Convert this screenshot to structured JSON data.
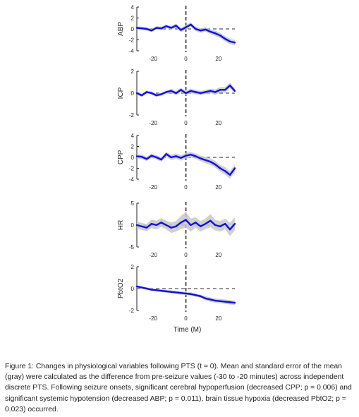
{
  "chart_data": [
    {
      "type": "line",
      "ylabel": "ABP",
      "ylim": [
        -4,
        4
      ],
      "yticks": [
        "4",
        "2",
        "0",
        "-2",
        "-4"
      ],
      "xlim": [
        -30,
        30
      ],
      "xticks": [
        "-20",
        "0",
        "20"
      ],
      "series": [
        {
          "x": [
            -30,
            -27,
            -24,
            -21,
            -18,
            -15,
            -12,
            -9,
            -6,
            -3,
            0,
            3,
            6,
            9,
            12,
            15,
            18,
            21,
            24,
            27,
            30
          ],
          "values": [
            0.2,
            0.1,
            0.0,
            -0.3,
            0.2,
            0.1,
            0.5,
            0.2,
            0.6,
            -0.2,
            0.3,
            0.8,
            0.0,
            -0.3,
            -0.1,
            -0.5,
            -0.8,
            -1.2,
            -1.8,
            -2.3,
            -2.5
          ],
          "sem": [
            0.3,
            0.3,
            0.3,
            0.3,
            0.3,
            0.3,
            0.3,
            0.3,
            0.4,
            0.4,
            0.4,
            0.4,
            0.4,
            0.4,
            0.4,
            0.4,
            0.5,
            0.5,
            0.5,
            0.5,
            0.5
          ]
        }
      ]
    },
    {
      "type": "line",
      "ylabel": "ICP",
      "ylim": [
        -2,
        2
      ],
      "yticks": [
        "2",
        "0",
        "-2"
      ],
      "xlim": [
        -30,
        30
      ],
      "xticks": [
        "-20",
        "0",
        "20"
      ],
      "series": [
        {
          "x": [
            -30,
            -27,
            -24,
            -21,
            -18,
            -15,
            -12,
            -9,
            -6,
            -3,
            0,
            3,
            6,
            9,
            12,
            15,
            18,
            21,
            24,
            27,
            30
          ],
          "values": [
            0.0,
            -0.2,
            0.1,
            0.0,
            -0.2,
            -0.1,
            0.1,
            0.2,
            0.0,
            0.3,
            0.0,
            0.2,
            0.1,
            0.0,
            0.1,
            0.2,
            0.1,
            0.3,
            0.3,
            0.7,
            0.2
          ],
          "sem": [
            0.15,
            0.15,
            0.15,
            0.15,
            0.15,
            0.15,
            0.15,
            0.2,
            0.2,
            0.2,
            0.2,
            0.2,
            0.2,
            0.2,
            0.2,
            0.2,
            0.25,
            0.25,
            0.25,
            0.25,
            0.25
          ]
        }
      ]
    },
    {
      "type": "line",
      "ylabel": "CPP",
      "ylim": [
        -4,
        4
      ],
      "yticks": [
        "4",
        "2",
        "0",
        "-2",
        "-4"
      ],
      "xlim": [
        -30,
        30
      ],
      "xticks": [
        "-20",
        "0",
        "20"
      ],
      "series": [
        {
          "x": [
            -30,
            -27,
            -24,
            -21,
            -18,
            -15,
            -12,
            -9,
            -6,
            -3,
            0,
            3,
            6,
            9,
            12,
            15,
            18,
            21,
            24,
            27,
            30
          ],
          "values": [
            0.2,
            0.1,
            -0.3,
            0.3,
            0.0,
            -0.4,
            0.6,
            0.0,
            0.2,
            -0.1,
            0.3,
            0.5,
            0.2,
            -0.2,
            -0.5,
            -0.8,
            -1.3,
            -2.0,
            -2.5,
            -3.2,
            -2.0
          ],
          "sem": [
            0.4,
            0.4,
            0.4,
            0.4,
            0.4,
            0.4,
            0.4,
            0.5,
            0.5,
            0.5,
            0.5,
            0.5,
            0.5,
            0.5,
            0.6,
            0.6,
            0.6,
            0.6,
            0.7,
            0.7,
            0.7
          ]
        }
      ]
    },
    {
      "type": "line",
      "ylabel": "HR",
      "ylim": [
        -5,
        5
      ],
      "yticks": [
        "5",
        "0",
        "-5"
      ],
      "xlim": [
        -30,
        30
      ],
      "xticks": [
        "-20",
        "0",
        "20"
      ],
      "series": [
        {
          "x": [
            -30,
            -27,
            -24,
            -21,
            -18,
            -15,
            -12,
            -9,
            -6,
            -3,
            0,
            3,
            6,
            9,
            12,
            15,
            18,
            21,
            24,
            27,
            30
          ],
          "values": [
            0.0,
            -0.3,
            -0.6,
            0.3,
            0.0,
            0.6,
            0.0,
            -0.6,
            -0.3,
            0.6,
            1.2,
            0.0,
            0.6,
            -0.3,
            0.3,
            1.0,
            0.0,
            -0.3,
            0.3,
            -1.0,
            0.3
          ],
          "sem": [
            0.8,
            0.8,
            0.8,
            1.0,
            1.0,
            1.0,
            1.0,
            1.2,
            1.2,
            1.5,
            1.8,
            1.5,
            1.2,
            1.2,
            1.2,
            1.5,
            1.2,
            1.2,
            1.2,
            1.5,
            1.5
          ]
        }
      ]
    },
    {
      "type": "line",
      "ylabel": "PbtO2",
      "ylim": [
        -2,
        2
      ],
      "yticks": [
        "2",
        "0",
        "-2"
      ],
      "xlim": [
        -30,
        30
      ],
      "xticks": [
        "-20",
        "0",
        "20"
      ],
      "xlabel": "Time (M)",
      "series": [
        {
          "x": [
            -30,
            -27,
            -24,
            -21,
            -18,
            -15,
            -12,
            -9,
            -6,
            -3,
            0,
            3,
            6,
            9,
            12,
            15,
            18,
            21,
            24,
            27,
            30
          ],
          "values": [
            0.2,
            0.1,
            0.0,
            -0.1,
            -0.15,
            -0.2,
            -0.25,
            -0.3,
            -0.35,
            -0.4,
            -0.45,
            -0.5,
            -0.6,
            -0.7,
            -0.9,
            -1.0,
            -1.1,
            -1.15,
            -1.2,
            -1.25,
            -1.3
          ],
          "sem": [
            0.1,
            0.1,
            0.12,
            0.12,
            0.12,
            0.12,
            0.15,
            0.15,
            0.15,
            0.15,
            0.15,
            0.15,
            0.15,
            0.15,
            0.2,
            0.2,
            0.2,
            0.2,
            0.2,
            0.2,
            0.2
          ]
        }
      ]
    }
  ],
  "colors": {
    "mean": "#1010e0",
    "sem": "#c8c8c8",
    "reference": "#555555",
    "axis": "#222222"
  },
  "caption": "Figure 1: Changes in physiological variables following PTS (t = 0). Mean and standard error of the mean (gray) were calculated as the difference from pre-seizure values (-30 to -20 minutes) across independent discrete PTS. Following seizure onsets, significant cerebral hypoperfusion (decreased CPP; p = 0.006) and significant systemic hypotension (decreased ABP; p = 0.011), brain tissue hypoxia (decreased PbtO2; p = 0.023) occurred."
}
